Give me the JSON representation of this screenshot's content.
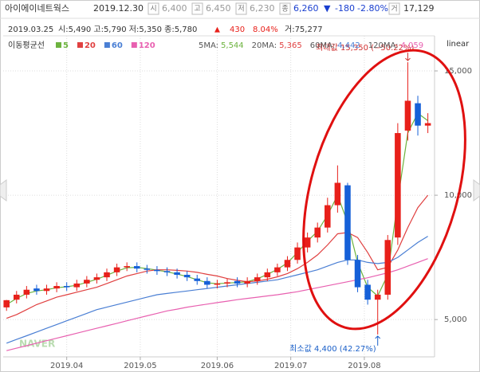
{
  "header": {
    "stock_name": "아이에이네트웍스",
    "date": "2019.12.30",
    "items": [
      {
        "label": "시",
        "value": "6,400"
      },
      {
        "label": "고",
        "value": "6,450"
      },
      {
        "label": "저",
        "value": "6,230"
      },
      {
        "label": "종",
        "value": "6,260"
      }
    ],
    "change_arrow": "▼",
    "change": "-180",
    "change_pct": "-2.80%",
    "volume_label": "거",
    "volume": "17,129"
  },
  "hover": {
    "date": "2019.03.25",
    "text": "시:5,490 고:5,790 저:5,350 종:5,780",
    "arrow": "▲",
    "change": "430",
    "change_pct": "8.04%",
    "volume": "거:75,277"
  },
  "ma_title": "이동평균선",
  "ma_info": [
    {
      "label": "5MA:",
      "value": "5,544"
    },
    {
      "label": "20MA:",
      "value": "5,365"
    },
    {
      "label": "60MA:",
      "value": "4,442"
    },
    {
      "label": "120MA:",
      "value": "4,059"
    }
  ],
  "watermark": "NAVER",
  "chart_data": {
    "type": "candlestick",
    "scale_label": "linear",
    "up_color": "#e8201a",
    "down_color": "#1560d8",
    "x": [
      0,
      3,
      6,
      9,
      12,
      15,
      18,
      21,
      24,
      27,
      30,
      33,
      36,
      39,
      42,
      45,
      48,
      51,
      54,
      57,
      60,
      63,
      66,
      69,
      72,
      75,
      78,
      81,
      84,
      87,
      90,
      93,
      96,
      99,
      102,
      105,
      108,
      111,
      114,
      117,
      120,
      123,
      126
    ],
    "open": [
      5490,
      5800,
      6000,
      6250,
      6150,
      6250,
      6350,
      6300,
      6450,
      6600,
      6700,
      6900,
      7100,
      7150,
      7050,
      7000,
      6950,
      6900,
      6800,
      6650,
      6550,
      6400,
      6450,
      6550,
      6450,
      6550,
      6700,
      6900,
      7100,
      7400,
      7900,
      8300,
      8700,
      9600,
      10400,
      7400,
      6400,
      5800,
      6000,
      8300,
      12600,
      13700,
      12800
    ],
    "high": [
      5790,
      6150,
      6350,
      6400,
      6400,
      6500,
      6500,
      6600,
      6750,
      6850,
      7050,
      7250,
      7300,
      7300,
      7200,
      7150,
      7100,
      7050,
      6950,
      6800,
      6700,
      6600,
      6650,
      6700,
      6700,
      6850,
      7050,
      7250,
      7550,
      8100,
      8500,
      8900,
      9900,
      11200,
      10500,
      7600,
      6600,
      6200,
      8400,
      12900,
      15350,
      14000,
      13300
    ],
    "low": [
      5350,
      5650,
      5850,
      6000,
      6000,
      6100,
      6150,
      6150,
      6300,
      6450,
      6550,
      6750,
      6950,
      6900,
      6850,
      6800,
      6750,
      6650,
      6550,
      6400,
      6250,
      6250,
      6300,
      6300,
      6300,
      6400,
      6550,
      6750,
      6950,
      7250,
      7700,
      8100,
      8500,
      9300,
      7200,
      6100,
      5600,
      4400,
      5800,
      8000,
      12200,
      12400,
      12500
    ],
    "close": [
      5780,
      6000,
      6200,
      6150,
      6250,
      6350,
      6300,
      6450,
      6600,
      6700,
      6900,
      7100,
      7150,
      7050,
      7000,
      6950,
      6900,
      6800,
      6700,
      6550,
      6400,
      6450,
      6500,
      6450,
      6550,
      6700,
      6900,
      7100,
      7400,
      7900,
      8300,
      8700,
      9600,
      10500,
      7400,
      6300,
      5800,
      6000,
      8200,
      12500,
      13800,
      12800,
      12900
    ],
    "series": [
      {
        "name": "5",
        "color": "#6db33f",
        "values": [
          5600,
          5850,
          6050,
          6150,
          6200,
          6280,
          6320,
          6380,
          6500,
          6620,
          6780,
          6950,
          7080,
          7100,
          7050,
          6990,
          6920,
          6830,
          6730,
          6600,
          6480,
          6440,
          6470,
          6490,
          6520,
          6640,
          6820,
          7020,
          7280,
          7700,
          8150,
          8550,
          9200,
          10000,
          8900,
          7300,
          6300,
          5950,
          6800,
          9800,
          12500,
          13300,
          13000
        ]
      },
      {
        "name": "20",
        "color": "#e04040",
        "values": [
          5050,
          5200,
          5400,
          5600,
          5750,
          5900,
          6000,
          6100,
          6200,
          6300,
          6450,
          6600,
          6750,
          6850,
          6950,
          7000,
          7000,
          6980,
          6950,
          6900,
          6820,
          6750,
          6650,
          6580,
          6520,
          6550,
          6620,
          6720,
          6850,
          7050,
          7300,
          7600,
          8000,
          8450,
          8500,
          8300,
          7700,
          7000,
          7100,
          7800,
          8700,
          9500,
          10000
        ]
      },
      {
        "name": "60",
        "color": "#4a7fd4",
        "values": [
          4050,
          4200,
          4350,
          4500,
          4650,
          4800,
          4950,
          5100,
          5250,
          5400,
          5500,
          5600,
          5700,
          5800,
          5900,
          6000,
          6050,
          6100,
          6150,
          6200,
          6250,
          6300,
          6350,
          6400,
          6450,
          6500,
          6550,
          6600,
          6700,
          6800,
          6900,
          7000,
          7150,
          7300,
          7400,
          7400,
          7300,
          7250,
          7300,
          7500,
          7800,
          8100,
          8350
        ]
      },
      {
        "name": "120",
        "color": "#e860b0",
        "values": [
          3750,
          3850,
          3950,
          4050,
          4150,
          4250,
          4350,
          4450,
          4550,
          4650,
          4750,
          4850,
          4950,
          5050,
          5150,
          5250,
          5350,
          5420,
          5500,
          5560,
          5620,
          5680,
          5740,
          5800,
          5850,
          5900,
          5950,
          6000,
          6060,
          6120,
          6200,
          6280,
          6360,
          6440,
          6520,
          6600,
          6680,
          6780,
          6880,
          7000,
          7150,
          7300,
          7450
        ]
      }
    ],
    "xlim": [
      -1,
      128
    ],
    "xticks": [
      {
        "value": 18,
        "label": "2019.04"
      },
      {
        "value": 40,
        "label": "2019.05"
      },
      {
        "value": 63,
        "label": "2019.06"
      },
      {
        "value": 85,
        "label": "2019.07"
      },
      {
        "value": 107,
        "label": "2019.08"
      }
    ],
    "ylim": [
      3500,
      16250
    ],
    "yticks": [
      {
        "value": 5000,
        "label": "5,000"
      },
      {
        "value": 10000,
        "label": "10,000"
      },
      {
        "value": 15000,
        "label": "15,000"
      }
    ],
    "grid": true,
    "max_annotation": "최대값 15,350 (−50.22%)",
    "min_annotation": "최소값 4,400 (42.27%)"
  }
}
